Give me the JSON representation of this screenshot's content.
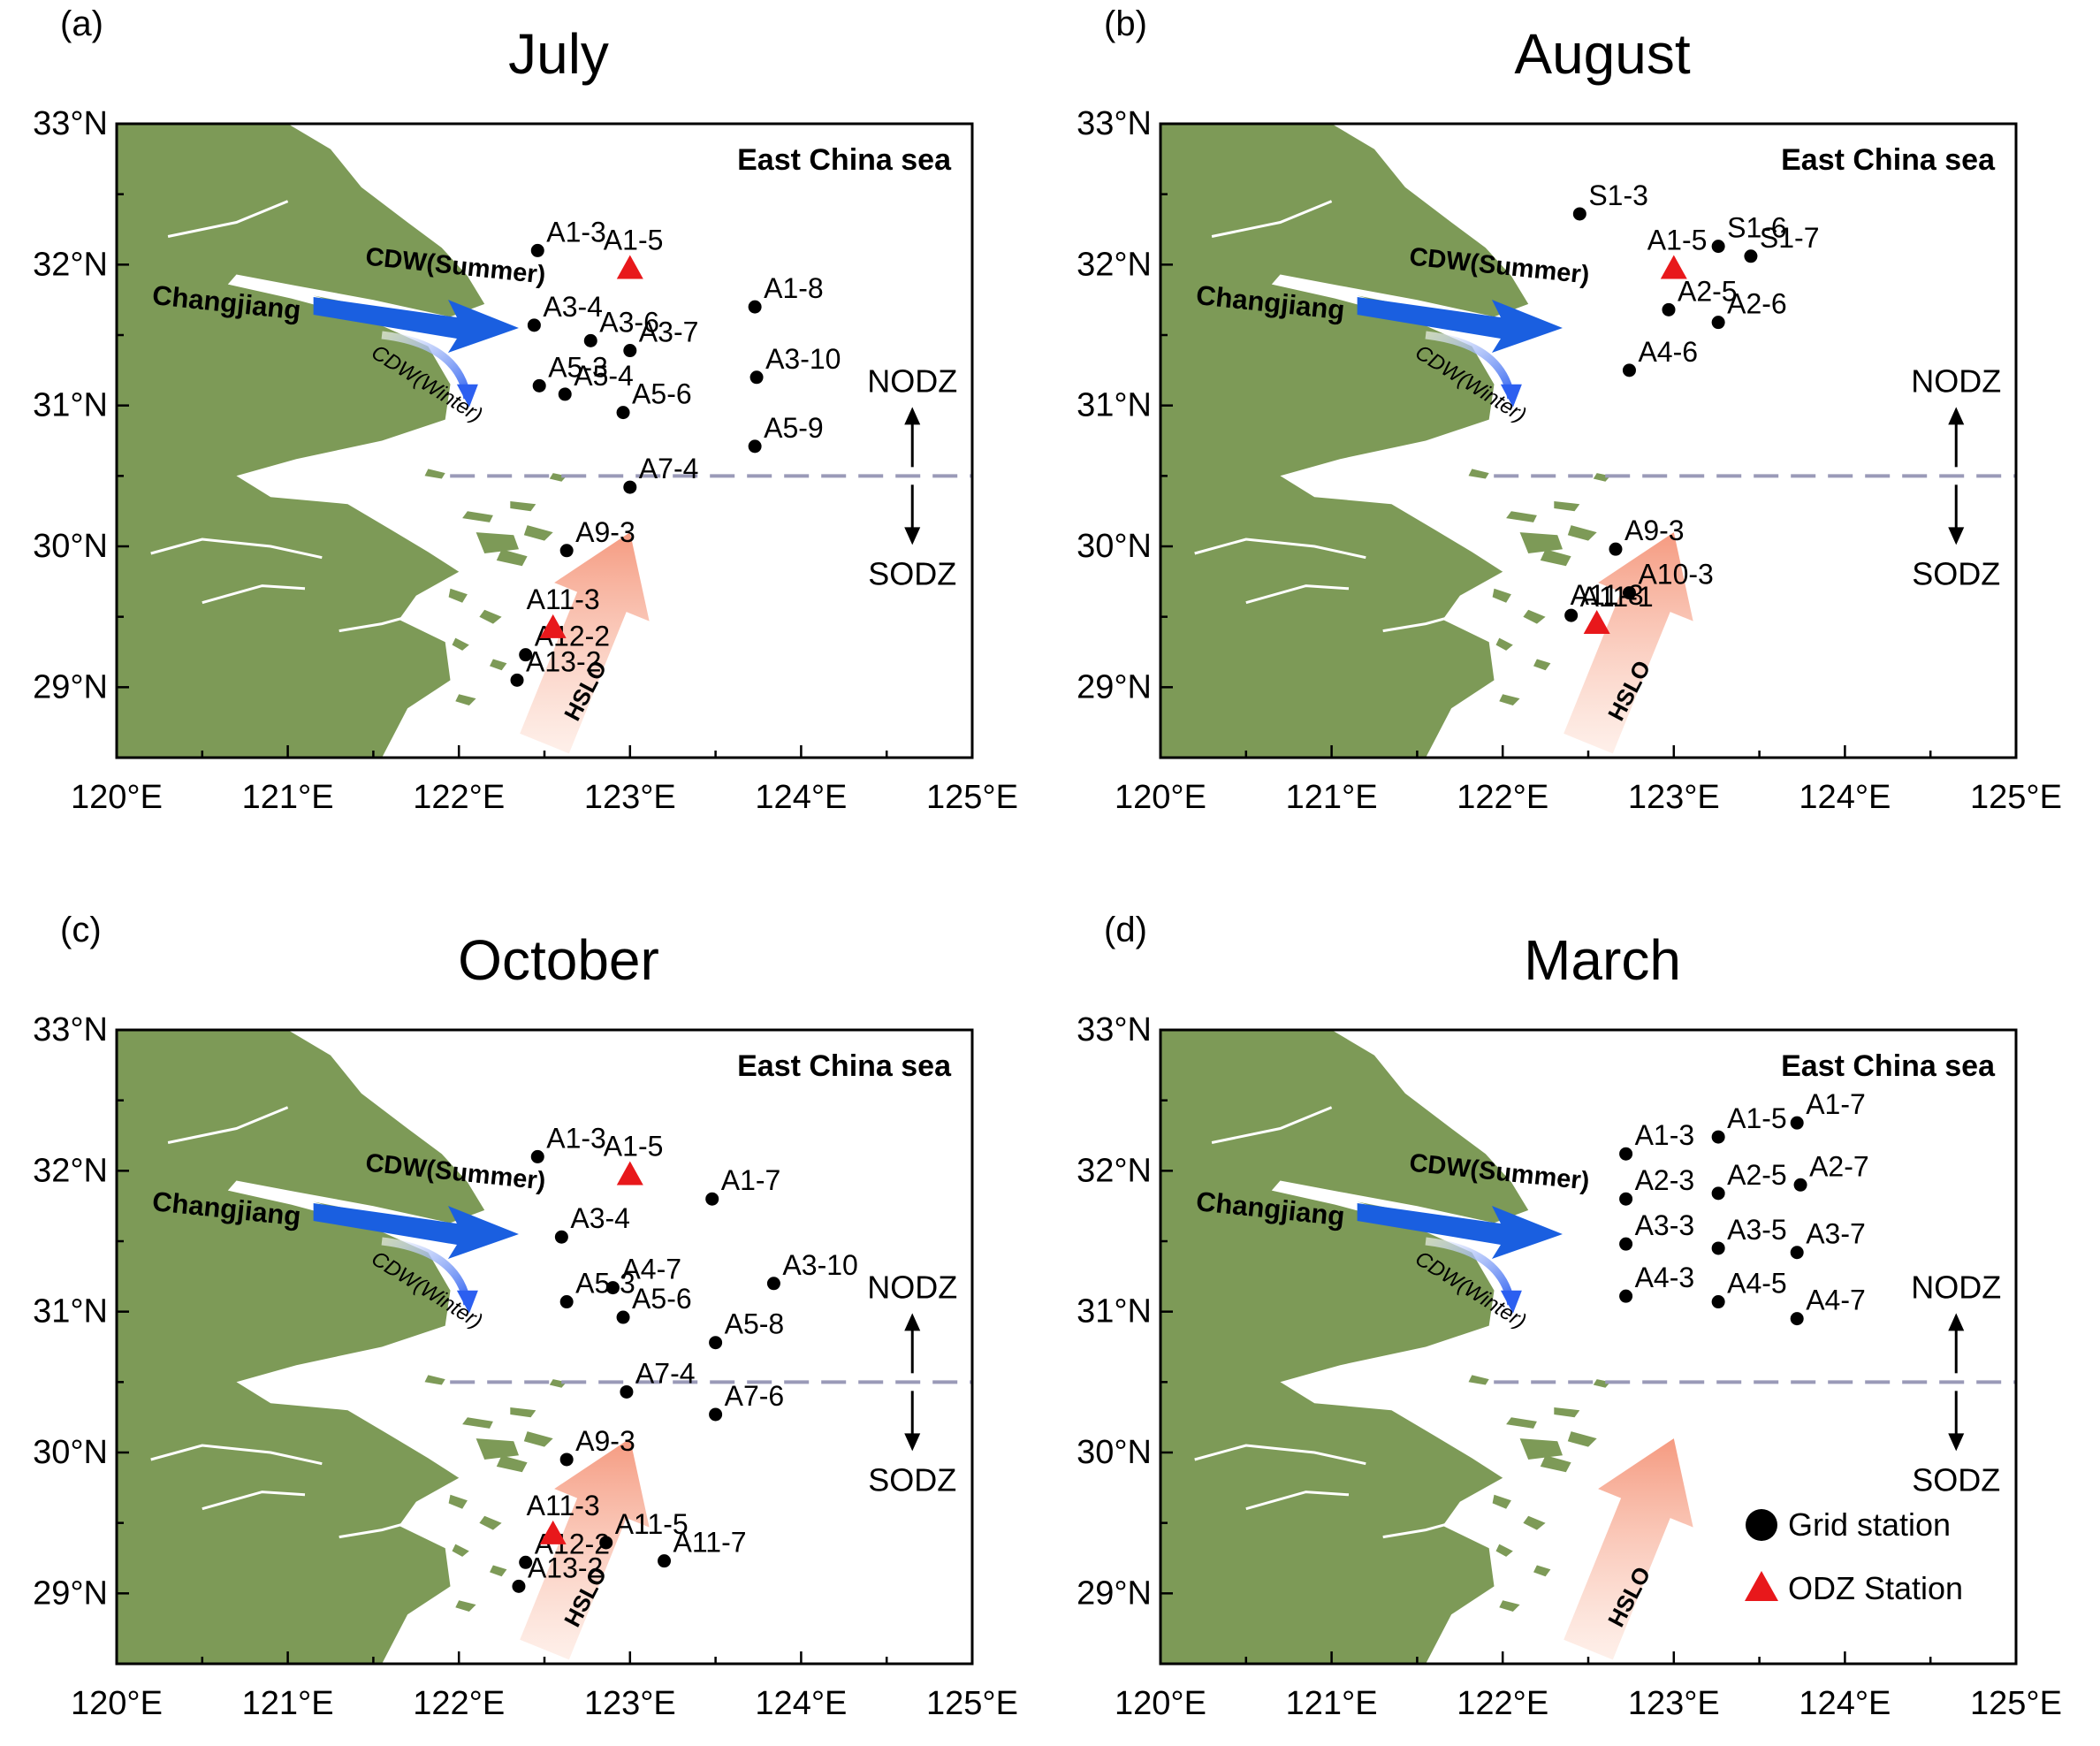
{
  "axes": {
    "lat_labels": [
      "33°N",
      "32°N",
      "31°N",
      "30°N",
      "29°N"
    ],
    "lon_labels": [
      "120°E",
      "121°E",
      "122°E",
      "123°E",
      "124°E",
      "125°E"
    ]
  },
  "common_labels": {
    "sea": "East China sea",
    "river": "Changjiang",
    "cdw_summer": "CDW(Summer)",
    "cdw_winter": "CDW(Winter)",
    "hslo": "HSLO",
    "nodz": "NODZ",
    "sodz": "SODZ"
  },
  "legend": {
    "grid": "Grid station",
    "odz": "ODZ Station"
  },
  "colors": {
    "land": "#7d9a57",
    "station": "#000000",
    "odz": "#e8181b",
    "cdw": "#1a5fe0",
    "sea_label": "#1a5fe0",
    "hslo_label": "#ef4a2a",
    "boundary": "#9a9ab8"
  },
  "panels": [
    {
      "letter": "(a)",
      "month": "July",
      "winter_label": "CDW(Winter)",
      "stations": [
        {
          "id": "A1-3",
          "lon": 122.46,
          "lat": 32.1
        },
        {
          "id": "A3-4",
          "lon": 122.44,
          "lat": 31.57
        },
        {
          "id": "A3-6",
          "lon": 122.77,
          "lat": 31.46
        },
        {
          "id": "A3-7",
          "lon": 123.0,
          "lat": 31.39
        },
        {
          "id": "A1-8",
          "lon": 123.73,
          "lat": 31.7
        },
        {
          "id": "A3-10",
          "lon": 123.74,
          "lat": 31.2
        },
        {
          "id": "A5-3",
          "lon": 122.47,
          "lat": 31.14
        },
        {
          "id": "A5-4",
          "lon": 122.62,
          "lat": 31.08
        },
        {
          "id": "A5-6",
          "lon": 122.96,
          "lat": 30.95
        },
        {
          "id": "A5-9",
          "lon": 123.73,
          "lat": 30.71
        },
        {
          "id": "A7-4",
          "lon": 123.0,
          "lat": 30.42
        },
        {
          "id": "A9-3",
          "lon": 122.63,
          "lat": 29.97
        },
        {
          "id": "A12-2",
          "lon": 122.39,
          "lat": 29.23
        },
        {
          "id": "A13-2",
          "lon": 122.34,
          "lat": 29.05
        }
      ],
      "odz": [
        {
          "id": "A1-5",
          "lon": 123.0,
          "lat": 31.98
        },
        {
          "id": "A11-3",
          "lon": 122.55,
          "lat": 29.43
        }
      ]
    },
    {
      "letter": "(b)",
      "month": "August",
      "winter_label": "CDW(Winter)",
      "stations": [
        {
          "id": "S1-3",
          "lon": 122.45,
          "lat": 32.36
        },
        {
          "id": "S1-6",
          "lon": 123.26,
          "lat": 32.13
        },
        {
          "id": "S1-7",
          "lon": 123.45,
          "lat": 32.06
        },
        {
          "id": "A2-5",
          "lon": 122.97,
          "lat": 31.68
        },
        {
          "id": "A2-6",
          "lon": 123.26,
          "lat": 31.59
        },
        {
          "id": "A4-6",
          "lon": 122.74,
          "lat": 31.25
        },
        {
          "id": "A9-3",
          "lon": 122.66,
          "lat": 29.98
        },
        {
          "id": "A10-3",
          "lon": 122.74,
          "lat": 29.67
        },
        {
          "id": "A11-1",
          "lon": 122.4,
          "lat": 29.51
        }
      ],
      "odz": [
        {
          "id": "A1-5",
          "lon": 123.0,
          "lat": 31.98
        },
        {
          "id": "A11-3",
          "lon": 122.55,
          "lat": 29.46
        }
      ]
    },
    {
      "letter": "(c)",
      "month": "October",
      "winter_label": "CDW(Winter)",
      "stations": [
        {
          "id": "A1-3",
          "lon": 122.46,
          "lat": 32.1
        },
        {
          "id": "A1-7",
          "lon": 123.48,
          "lat": 31.8
        },
        {
          "id": "A3-4",
          "lon": 122.6,
          "lat": 31.53
        },
        {
          "id": "A4-7",
          "lon": 122.9,
          "lat": 31.17
        },
        {
          "id": "A3-10",
          "lon": 123.84,
          "lat": 31.2
        },
        {
          "id": "A5-3",
          "lon": 122.63,
          "lat": 31.07
        },
        {
          "id": "A5-6",
          "lon": 122.96,
          "lat": 30.96
        },
        {
          "id": "A5-8",
          "lon": 123.5,
          "lat": 30.78
        },
        {
          "id": "A7-4",
          "lon": 122.98,
          "lat": 30.43
        },
        {
          "id": "A7-6",
          "lon": 123.5,
          "lat": 30.27
        },
        {
          "id": "A9-3",
          "lon": 122.63,
          "lat": 29.95
        },
        {
          "id": "A11-5",
          "lon": 122.86,
          "lat": 29.36
        },
        {
          "id": "A11-7",
          "lon": 123.2,
          "lat": 29.23
        },
        {
          "id": "A12-2",
          "lon": 122.39,
          "lat": 29.22
        },
        {
          "id": "A13-2",
          "lon": 122.35,
          "lat": 29.05
        }
      ],
      "odz": [
        {
          "id": "A1-5",
          "lon": 123.0,
          "lat": 31.98
        },
        {
          "id": "A11-3",
          "lon": 122.55,
          "lat": 29.43
        }
      ]
    },
    {
      "letter": "(d)",
      "month": "March",
      "winter_label": "CDW(Winter)",
      "stations": [
        {
          "id": "A1-3",
          "lon": 122.72,
          "lat": 32.12
        },
        {
          "id": "A1-5",
          "lon": 123.26,
          "lat": 32.24
        },
        {
          "id": "A1-7",
          "lon": 123.72,
          "lat": 32.34
        },
        {
          "id": "A2-3",
          "lon": 122.72,
          "lat": 31.8
        },
        {
          "id": "A2-5",
          "lon": 123.26,
          "lat": 31.84
        },
        {
          "id": "A2-7",
          "lon": 123.74,
          "lat": 31.9
        },
        {
          "id": "A3-3",
          "lon": 122.72,
          "lat": 31.48
        },
        {
          "id": "A3-5",
          "lon": 123.26,
          "lat": 31.45
        },
        {
          "id": "A3-7",
          "lon": 123.72,
          "lat": 31.42
        },
        {
          "id": "A4-3",
          "lon": 122.72,
          "lat": 31.11
        },
        {
          "id": "A4-5",
          "lon": 123.26,
          "lat": 31.07
        },
        {
          "id": "A4-7",
          "lon": 123.72,
          "lat": 30.95
        }
      ],
      "odz": []
    }
  ]
}
